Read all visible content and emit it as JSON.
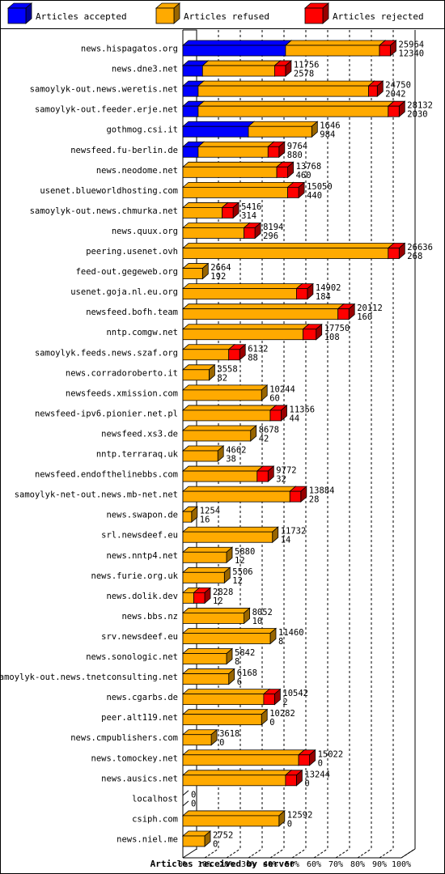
{
  "chart_data": {
    "type": "bar",
    "orientation": "horizontal",
    "stacked": true,
    "three_d": true,
    "xlabel": "Articles received by server",
    "x_ticks": [
      "0%",
      "10%",
      "20%",
      "30%",
      "40%",
      "50%",
      "60%",
      "70%",
      "80%",
      "90%",
      "100%"
    ],
    "legend_position": "top",
    "grid": true,
    "series": [
      {
        "name": "Articles accepted",
        "color": "#0000ff"
      },
      {
        "name": "Articles refused",
        "color": "#ffaa00"
      },
      {
        "name": "Articles rejected",
        "color": "#ff0000"
      }
    ],
    "categories": [
      "news.hispagatos.org",
      "news.dne3.net",
      "samoylyk-out.news.weretis.net",
      "samoylyk-out.feeder.erje.net",
      "gothmog.csi.it",
      "newsfeed.fu-berlin.de",
      "news.neodome.net",
      "usenet.blueworldhosting.com",
      "samoylyk-out.news.chmurka.net",
      "news.quux.org",
      "peering.usenet.ovh",
      "feed-out.gegeweb.org",
      "usenet.goja.nl.eu.org",
      "newsfeed.bofh.team",
      "nntp.comgw.net",
      "samoylyk.feeds.news.szaf.org",
      "news.corradoroberto.it",
      "newsfeeds.xmission.com",
      "newsfeed-ipv6.pionier.net.pl",
      "newsfeed.xs3.de",
      "nntp.terraraq.uk",
      "newsfeed.endofthelinebbs.com",
      "samoylyk-net-out.news.mb-net.net",
      "news.swapon.de",
      "srl.newsdeef.eu",
      "news.nntp4.net",
      "news.furie.org.uk",
      "news.dolik.dev",
      "news.bbs.nz",
      "srv.newsdeef.eu",
      "news.sonologic.net",
      "samoylyk-out.news.tnetconsulting.net",
      "news.cgarbs.de",
      "peer.alt119.net",
      "news.cmpublishers.com",
      "news.tomockey.net",
      "news.ausics.net",
      "localhost",
      "csiph.com",
      "news.niel.me"
    ],
    "totals": [
      25964,
      11756,
      24750,
      28132,
      1646,
      9764,
      13768,
      15050,
      5416,
      8194,
      26636,
      2664,
      14902,
      20112,
      17750,
      6132,
      3558,
      10244,
      11356,
      8678,
      4662,
      9772,
      13884,
      1254,
      11732,
      5880,
      5506,
      2828,
      8052,
      11460,
      5842,
      6168,
      10542,
      10282,
      3618,
      15022,
      13244,
      0,
      12592,
      2752
    ],
    "rejected": [
      12340,
      2578,
      2042,
      2030,
      984,
      880,
      460,
      440,
      314,
      296,
      268,
      192,
      184,
      160,
      108,
      88,
      82,
      60,
      44,
      42,
      38,
      32,
      28,
      16,
      14,
      12,
      12,
      12,
      10,
      8,
      8,
      6,
      2,
      0,
      0,
      0,
      0,
      0,
      0,
      0
    ],
    "accepted_pct": [
      0.47,
      0.09,
      0.07,
      0.07,
      0.3,
      0.07,
      0.0,
      0.0,
      0.0,
      0.0,
      0.0,
      0.0,
      0.0,
      0.0,
      0.0,
      0.0,
      0.0,
      0.0,
      0.0,
      0.0,
      0.0,
      0.0,
      0.0,
      0.0,
      0.0,
      0.0,
      0.0,
      0.0,
      0.0,
      0.0,
      0.0,
      0.0,
      0.0,
      0.0,
      0.0,
      0.0,
      0.0,
      0.0,
      0.0,
      0.0
    ],
    "refused_pct": [
      0.43,
      0.33,
      0.78,
      0.87,
      0.29,
      0.32,
      0.43,
      0.48,
      0.18,
      0.28,
      0.94,
      0.09,
      0.52,
      0.71,
      0.55,
      0.21,
      0.12,
      0.36,
      0.4,
      0.31,
      0.16,
      0.34,
      0.49,
      0.04,
      0.41,
      0.2,
      0.19,
      0.05,
      0.28,
      0.4,
      0.2,
      0.21,
      0.37,
      0.36,
      0.13,
      0.53,
      0.47,
      0.0,
      0.44,
      0.1
    ],
    "rejected_pct": [
      0.05,
      0.05,
      0.04,
      0.05,
      0.0,
      0.05,
      0.05,
      0.05,
      0.05,
      0.05,
      0.05,
      0.0,
      0.05,
      0.05,
      0.06,
      0.05,
      0.0,
      0.0,
      0.05,
      0.0,
      0.0,
      0.05,
      0.05,
      0.0,
      0.0,
      0.0,
      0.0,
      0.05,
      0.0,
      0.0,
      0.0,
      0.0,
      0.05,
      0.0,
      0.0,
      0.05,
      0.05,
      0.0,
      0.0,
      0.0
    ]
  }
}
